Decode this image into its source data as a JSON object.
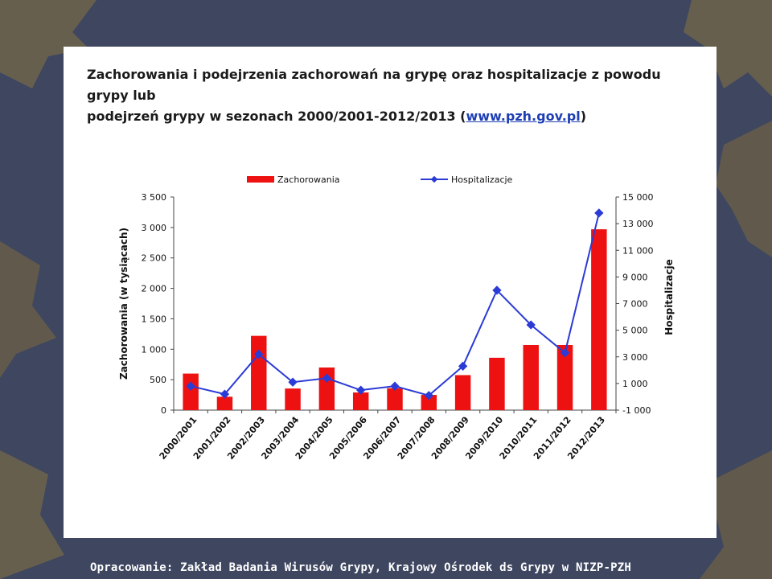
{
  "slide": {
    "title_line1": "Zachorowania i podejrzenia zachorowań na grypę oraz hospitalizacje z powodu grypy lub",
    "title_line2_prefix": "podejrzeń grypy w sezonach 2000/2001-2012/2013 (",
    "title_link": "www.pzh.gov.pl",
    "title_line2_suffix": ")",
    "footer": "Opracowanie: Zakład Badania Wirusów Grypy, Krajowy Ośrodek ds Grypy w NIZP-PZH"
  },
  "colors": {
    "bar": "#ee1111",
    "line": "#2b3bd6",
    "background": "#3e4660"
  },
  "chart_data": {
    "type": "bar",
    "categories": [
      "2000/2001",
      "2001/2002",
      "2002/2003",
      "2003/2004",
      "2004/2005",
      "2005/2006",
      "2006/2007",
      "2007/2008",
      "2008/2009",
      "2009/2010",
      "2010/2011",
      "2011/2012",
      "2012/2013"
    ],
    "series": [
      {
        "name": "Zachorowania",
        "type": "bar",
        "axis": "left",
        "values": [
          600,
          220,
          1220,
          355,
          700,
          290,
          360,
          250,
          575,
          860,
          1070,
          1070,
          2970
        ]
      },
      {
        "name": "Hospitalizacje",
        "type": "line",
        "axis": "right",
        "values": [
          800,
          200,
          3200,
          1100,
          1400,
          500,
          800,
          100,
          2300,
          8000,
          5400,
          3300,
          13800
        ]
      }
    ],
    "ylabel": "Zachorowania   (w tysiącach)",
    "y2label": "Hospitalizacje",
    "ylim": [
      0,
      3500
    ],
    "y2lim": [
      -1000,
      15000
    ],
    "yticks": [
      0,
      500,
      1000,
      1500,
      2000,
      2500,
      3000,
      3500
    ],
    "yticklabels": [
      "0",
      "500",
      "1 000",
      "1 500",
      "2 000",
      "2 500",
      "3 000",
      "3 500"
    ],
    "y2ticks": [
      -1000,
      1000,
      3000,
      5000,
      7000,
      9000,
      11000,
      13000,
      15000
    ],
    "y2ticklabels": [
      "-1 000",
      "1 000",
      "3 000",
      "5 000",
      "7 000",
      "9 000",
      "11 000",
      "13 000",
      "15 000"
    ],
    "legend": [
      "Zachorowania",
      "Hospitalizacje"
    ],
    "legend_position": "top"
  }
}
